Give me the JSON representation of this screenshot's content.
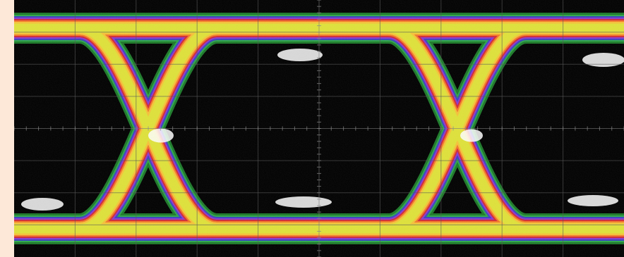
{
  "instrument": {
    "display_type": "eye-diagram",
    "graticule": {
      "divisions_x": 10,
      "divisions_y": 8
    },
    "persistence_palette": [
      "#1e7a2a",
      "#2fa84a",
      "#3a44c0",
      "#8a3ad0",
      "#d12a3a",
      "#f47a2a",
      "#f6c23a",
      "#dfe23a",
      "#f4f6c8",
      "#ffffff"
    ],
    "background_color": "#000000",
    "border_color": "#fde8d8",
    "unit_intervals_shown": 2
  }
}
